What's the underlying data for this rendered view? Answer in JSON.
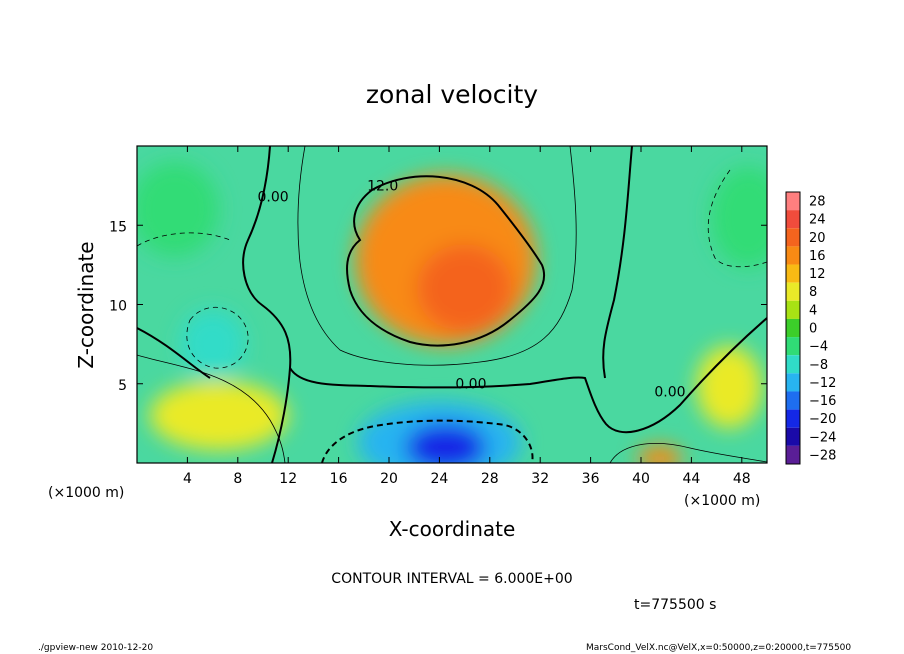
{
  "chart_data": {
    "type": "heatmap",
    "title": "zonal velocity",
    "xlabel": "X-coordinate",
    "ylabel": "Z-coordinate",
    "x_unit": "(×1000 m)",
    "y_unit": "(×1000 m)",
    "xlim": [
      0,
      50
    ],
    "ylim": [
      0,
      20
    ],
    "x_ticks": [
      4,
      8,
      12,
      16,
      20,
      24,
      28,
      32,
      36,
      40,
      44,
      48
    ],
    "y_ticks": [
      5,
      10,
      15
    ],
    "colorbar": {
      "levels": [
        28,
        24,
        20,
        16,
        12,
        8,
        4,
        0,
        -4,
        -8,
        -12,
        -16,
        -20,
        -24,
        -28
      ],
      "colors": [
        "#ff7f7f",
        "#f04c3c",
        "#f4641e",
        "#f88a14",
        "#f8ba14",
        "#eaea28",
        "#a8e214",
        "#3cce2a",
        "#30dc76",
        "#30dcc8",
        "#28b4f0",
        "#1e6ef0",
        "#1428e6",
        "#1a0aa8",
        "#5a1e96"
      ]
    },
    "contour_labels": [
      {
        "text": "0.00",
        "x": 10.8,
        "y": 16.5
      },
      {
        "text": "12.0",
        "x": 19.5,
        "y": 17.2
      },
      {
        "text": "0.00",
        "x": 26.5,
        "y": 4.7
      },
      {
        "text": "0.00",
        "x": 42.3,
        "y": 4.2
      }
    ],
    "blobs": [
      {
        "x": 24.5,
        "y": 12.8,
        "rx": 7.2,
        "ry": 5.4,
        "value": 14
      },
      {
        "x": 26.0,
        "y": 11.0,
        "rx": 3.8,
        "ry": 2.8,
        "value": 18
      },
      {
        "x": 24.0,
        "y": 1.3,
        "rx": 6.5,
        "ry": 2.6,
        "value": -13
      },
      {
        "x": 24.5,
        "y": 1.0,
        "rx": 3.2,
        "ry": 1.5,
        "value": -20
      },
      {
        "x": 6.0,
        "y": 7.5,
        "rx": 2.6,
        "ry": 2.2,
        "value": -7
      },
      {
        "x": 3.0,
        "y": 16.0,
        "rx": 3.5,
        "ry": 3.0,
        "value": -5
      },
      {
        "x": 48.5,
        "y": 15.5,
        "rx": 3.0,
        "ry": 3.2,
        "value": -5
      },
      {
        "x": 6.5,
        "y": 3.0,
        "rx": 5.5,
        "ry": 2.2,
        "value": 9
      },
      {
        "x": 47.0,
        "y": 4.8,
        "rx": 2.6,
        "ry": 2.6,
        "value": 9
      },
      {
        "x": 41.5,
        "y": 0.3,
        "rx": 1.8,
        "ry": 0.8,
        "value": 17
      }
    ]
  },
  "info": {
    "contour_interval": "CONTOUR INTERVAL = 6.000E+00",
    "time": "t=775500 s"
  },
  "footer": {
    "left": "./gpview-new  2010-12-20",
    "right": "MarsCond_VelX.nc@VelX,x=0:50000,z=0:20000,t=775500"
  }
}
